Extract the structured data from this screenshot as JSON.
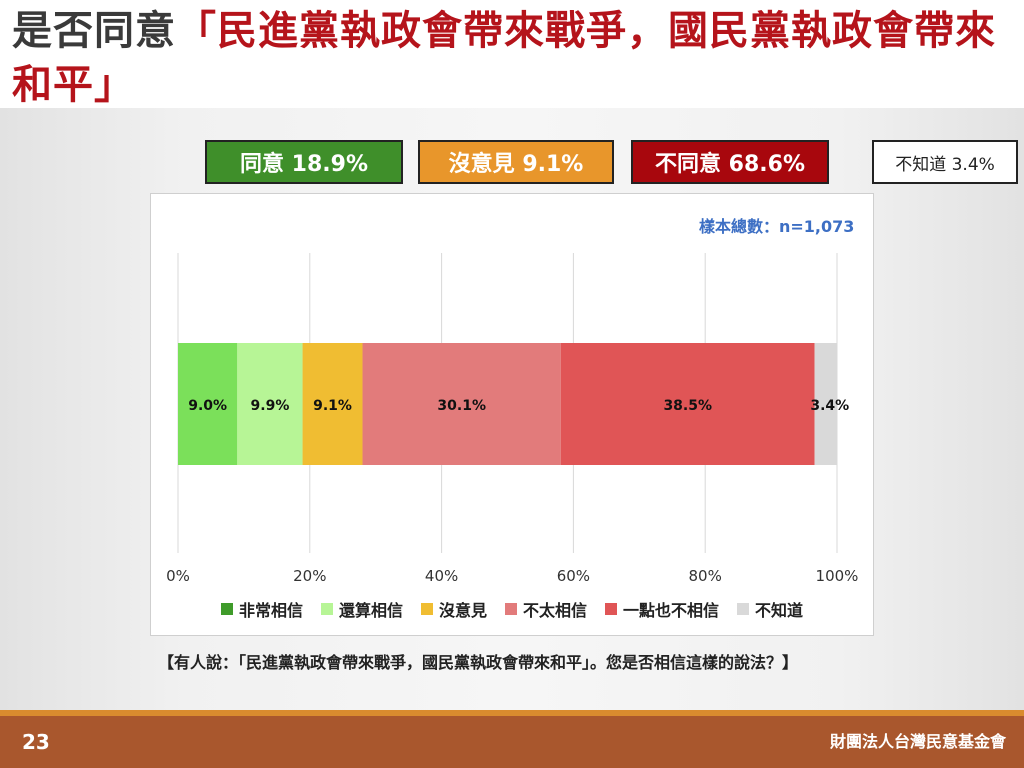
{
  "title": {
    "prefix": "是否同意",
    "quoted": "「民進黨執政會帶來戰爭，國民黨執政會帶來和平」"
  },
  "summary": {
    "agree": "同意 18.9%",
    "neutral": "沒意見 9.1%",
    "disagree": "不同意 68.6%",
    "unknown": "不知道 3.4%"
  },
  "sample_size": "樣本總數：n=1,073",
  "chart_data": {
    "type": "bar",
    "orientation": "horizontal-stacked",
    "xlim": [
      0,
      100
    ],
    "x_ticks": [
      "0%",
      "20%",
      "40%",
      "60%",
      "80%",
      "100%"
    ],
    "grid": true,
    "legend_placement": "bottom",
    "series": [
      {
        "name": "非常相信",
        "value": 9.0,
        "label": "9.0%",
        "color": "#7be05a"
      },
      {
        "name": "還算相信",
        "value": 9.9,
        "label": "9.9%",
        "color": "#b7f596"
      },
      {
        "name": "沒意見",
        "value": 9.1,
        "label": "9.1%",
        "color": "#f0bd32"
      },
      {
        "name": "不太相信",
        "value": 30.1,
        "label": "30.1%",
        "color": "#e27b7b"
      },
      {
        "name": "一點也不相信",
        "value": 38.5,
        "label": "38.5%",
        "color": "#e05556"
      },
      {
        "name": "不知道",
        "value": 3.4,
        "label": "3.4%",
        "color": "#d9d9d9"
      }
    ]
  },
  "legend_colors_note": {
    "very_believe": "#3f9b2a",
    "somewhat_believe": "#b7f596",
    "no_opinion": "#f0bd32",
    "not_much": "#e27b7b",
    "not_at_all": "#e05556",
    "unknown": "#d9d9d9"
  },
  "question": "【有人說：「民進黨執政會帶來戰爭，國民黨執政會帶來和平」。您是否相信這樣的說法？】",
  "footer": {
    "page_number": "23",
    "organization": "財團法人台灣民意基金會"
  }
}
